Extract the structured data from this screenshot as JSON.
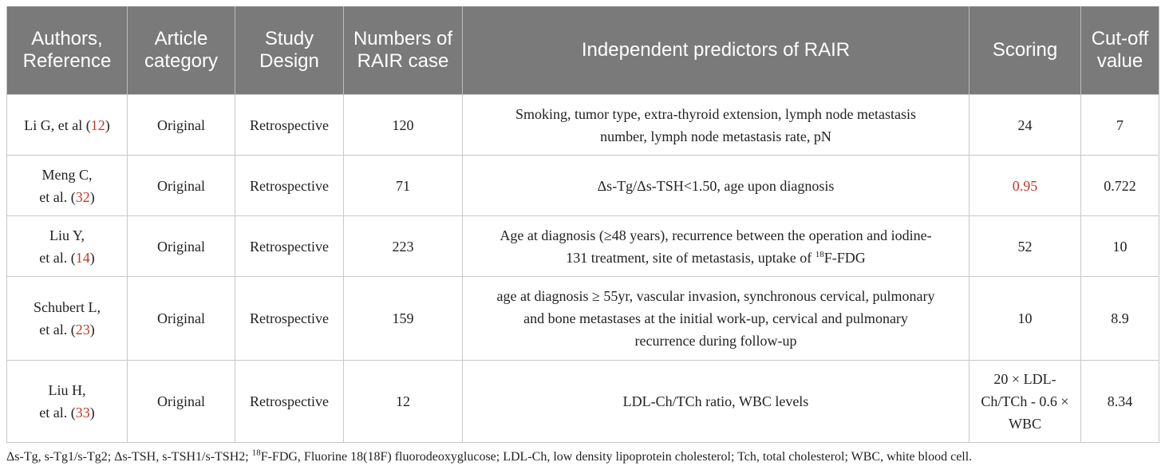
{
  "table": {
    "headers": [
      "Authors, Reference",
      "Article category",
      "Study Design",
      "Numbers of RAIR case",
      "Independent predictors of RAIR",
      "Scoring",
      "Cut-off value"
    ],
    "rows": [
      {
        "author_line1": "Li G, et al (",
        "ref": "12",
        "author_line2": "",
        "category": "Original",
        "design": "Retrospective",
        "cases": "120",
        "predictors": "Smoking, tumor type, extra-thyroid extension, lymph node metastasis number, lymph node metastasis rate, pN",
        "scoring": "24",
        "cutoff": "7"
      },
      {
        "author_line1": "Meng C,",
        "author_line2": "et al. (",
        "ref": "32",
        "category": "Original",
        "design": "Retrospective",
        "cases": "71",
        "predictors": "Δs-Tg/Δs-TSH<1.50, age upon diagnosis",
        "scoring": "0.95",
        "cutoff": "0.722"
      },
      {
        "author_line1": "Liu Y,",
        "author_line2": "et al. (",
        "ref": "14",
        "category": "Original",
        "design": "Retrospective",
        "cases": "223",
        "predictors_pre": "Age at diagnosis (≥48 years), recurrence between the operation and iodine-131 treatment, site of metastasis, uptake of ",
        "predictors_sup": "18",
        "predictors_post": "F-FDG",
        "scoring": "52",
        "cutoff": "10"
      },
      {
        "author_line1": "Schubert L,",
        "author_line2": "et al. (",
        "ref": "23",
        "category": "Original",
        "design": "Retrospective",
        "cases": "159",
        "predictors": "age at diagnosis ≥ 55yr, vascular invasion, synchronous cervical, pulmonary and bone metastases at the initial work-up, cervical and pulmonary recurrence during follow-up",
        "scoring": "10",
        "cutoff": "8.9"
      },
      {
        "author_line1": "Liu H,",
        "author_line2": "et al. (",
        "ref": "33",
        "category": "Original",
        "design": "Retrospective",
        "cases": "12",
        "predictors": "LDL-Ch/TCh ratio, WBC levels",
        "scoring": "20 × LDL-Ch/TCh - 0.6 × WBC",
        "cutoff": "8.34"
      }
    ],
    "close_paren": ")"
  },
  "footnote": {
    "pre": "Δs-Tg, s-Tg1/s-Tg2; Δs-TSH, s-TSH1/s-TSH2; ",
    "sup": "18",
    "post": "F-FDG, Fluorine 18(18F) fluorodeoxyglucose; LDL-Ch, low density lipoprotein cholesterol; Tch, total cholesterol; WBC, white blood cell."
  },
  "colors": {
    "header_bg": "#7a7a7a",
    "reference_link": "#c0392b"
  }
}
